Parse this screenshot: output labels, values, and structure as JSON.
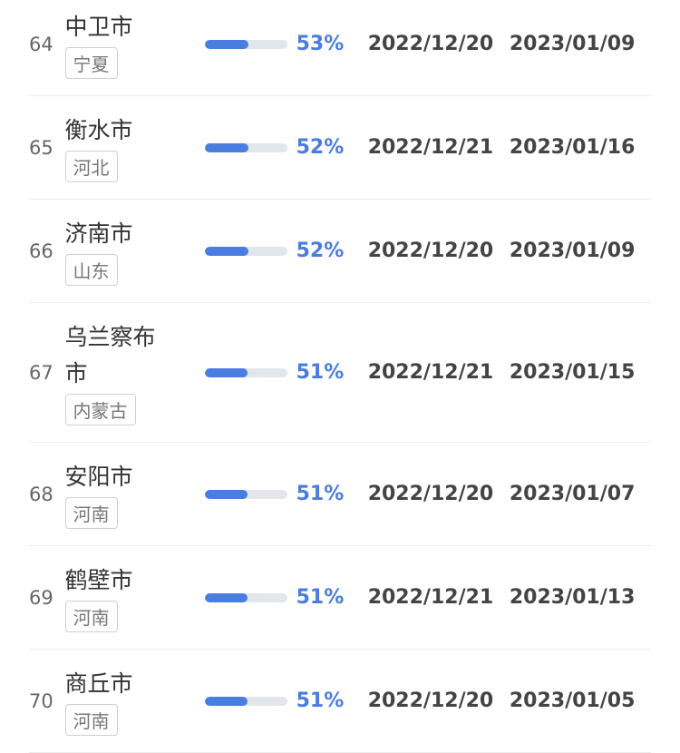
{
  "table": {
    "rows": [
      {
        "rank": 64,
        "city": "中卫市",
        "province": "宁夏",
        "percent": 53,
        "percent_label": "53%",
        "date1": "2022/12/20",
        "date2": "2023/01/09"
      },
      {
        "rank": 65,
        "city": "衡水市",
        "province": "河北",
        "percent": 52,
        "percent_label": "52%",
        "date1": "2022/12/21",
        "date2": "2023/01/16"
      },
      {
        "rank": 66,
        "city": "济南市",
        "province": "山东",
        "percent": 52,
        "percent_label": "52%",
        "date1": "2022/12/20",
        "date2": "2023/01/09"
      },
      {
        "rank": 67,
        "city": "乌兰察布市",
        "province": "内蒙古",
        "percent": 51,
        "percent_label": "51%",
        "date1": "2022/12/21",
        "date2": "2023/01/15"
      },
      {
        "rank": 68,
        "city": "安阳市",
        "province": "河南",
        "percent": 51,
        "percent_label": "51%",
        "date1": "2022/12/20",
        "date2": "2023/01/07"
      },
      {
        "rank": 69,
        "city": "鹤壁市",
        "province": "河南",
        "percent": 51,
        "percent_label": "51%",
        "date1": "2022/12/21",
        "date2": "2023/01/13"
      },
      {
        "rank": 70,
        "city": "商丘市",
        "province": "河南",
        "percent": 51,
        "percent_label": "51%",
        "date1": "2022/12/20",
        "date2": "2023/01/05"
      }
    ]
  }
}
